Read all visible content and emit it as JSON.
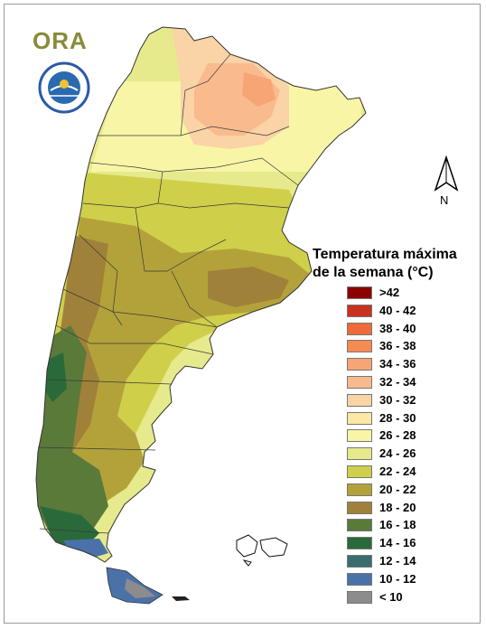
{
  "logo": {
    "text": "ORA",
    "seal_text": "SERVICIO METEOROLOGICO NACIONAL ARGENTINA",
    "seal_center": "SMN"
  },
  "north_arrow": {
    "label": "N"
  },
  "legend": {
    "title_line1": "Temperatura máxima",
    "title_line2": "de la semana (°C)",
    "items": [
      {
        "label": ">42",
        "color": "#8b0000"
      },
      {
        "label": "40 - 42",
        "color": "#c8321e"
      },
      {
        "label": "38 - 40",
        "color": "#ee6a3a"
      },
      {
        "label": "36 - 38",
        "color": "#f58a52"
      },
      {
        "label": "34 - 36",
        "color": "#f7a574"
      },
      {
        "label": "32 - 34",
        "color": "#f9bb8e"
      },
      {
        "label": "30 - 32",
        "color": "#fad3a6"
      },
      {
        "label": "28 - 30",
        "color": "#fbe8a6"
      },
      {
        "label": "26 - 28",
        "color": "#f8f5a6"
      },
      {
        "label": "24 - 26",
        "color": "#e6ea8c"
      },
      {
        "label": "22 - 24",
        "color": "#cfcf4a"
      },
      {
        "label": "20 - 22",
        "color": "#b3a23a"
      },
      {
        "label": "18 - 20",
        "color": "#a0813a"
      },
      {
        "label": "16 - 18",
        "color": "#5a7a3a"
      },
      {
        "label": "14 - 16",
        "color": "#2a6a3a"
      },
      {
        "label": "12 - 14",
        "color": "#3a6e6e"
      },
      {
        "label": "10 - 12",
        "color": "#4a72a8"
      },
      {
        "label": "< 10",
        "color": "#8c8c8c"
      }
    ]
  }
}
